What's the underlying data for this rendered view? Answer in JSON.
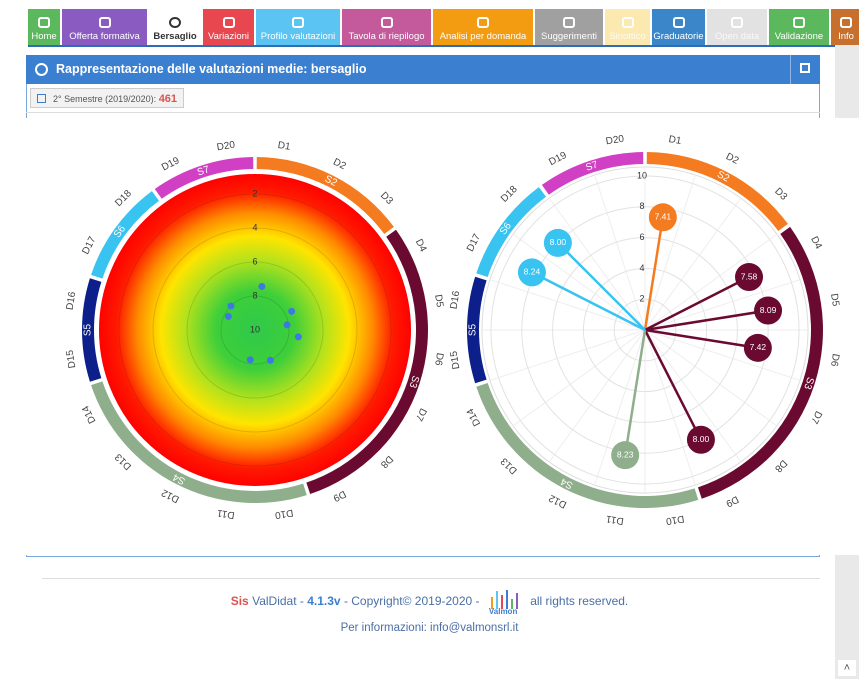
{
  "nav": [
    {
      "label": "Home",
      "color": "#5cb85c"
    },
    {
      "label": "Offerta formativa",
      "color": "#8a5cc2"
    },
    {
      "label": "Bersaglio",
      "color": "#ffffff"
    },
    {
      "label": "Variazioni",
      "color": "#e8474f"
    },
    {
      "label": "Profilo valutazioni",
      "color": "#5bc4f2"
    },
    {
      "label": "Tavola di riepilogo",
      "color": "#c45a9c"
    },
    {
      "label": "Analisi per domanda",
      "color": "#f39c12"
    },
    {
      "label": "Suggerimenti",
      "color": "#a0a0a0"
    },
    {
      "label": "Sinottico",
      "color": "#fbe9b0"
    },
    {
      "label": "Graduatorie",
      "color": "#3a86c8"
    },
    {
      "label": "Open data",
      "color": "#e2e2e2"
    },
    {
      "label": "Validazione",
      "color": "#5cb85c"
    },
    {
      "label": "Info",
      "color": "#c7702e"
    }
  ],
  "panel": {
    "title": "Rappresentazione delle valutazioni medie: bersaglio",
    "filter_label": "2° Semestre (2019/2020):",
    "filter_count": "461"
  },
  "chart_data": [
    {
      "type": "target",
      "domains": [
        "D1",
        "D2",
        "D3",
        "D4",
        "D5",
        "D6",
        "D7",
        "D8",
        "D9",
        "D10",
        "D11",
        "D12",
        "D13",
        "D14",
        "D15",
        "D16",
        "D17",
        "D18",
        "D19",
        "D20"
      ],
      "values": [
        7.41,
        null,
        null,
        7.58,
        8.09,
        7.42,
        null,
        null,
        8.0,
        null,
        8.23,
        null,
        null,
        null,
        null,
        null,
        8.24,
        8.0,
        null,
        null
      ],
      "sectors": [
        {
          "name": "S2",
          "color": "#f47b20",
          "from": "D1",
          "to": "D3"
        },
        {
          "name": "S3",
          "color": "#6b0a30",
          "from": "D4",
          "to": "D9"
        },
        {
          "name": "S4",
          "color": "#8fae8c",
          "from": "D10",
          "to": "D14"
        },
        {
          "name": "S5",
          "color": "#0d1f8a",
          "from": "D15",
          "to": "D16"
        },
        {
          "name": "S6",
          "color": "#38c3f0",
          "from": "D17",
          "to": "D18"
        },
        {
          "name": "S7",
          "color": "#d13fc4",
          "from": "D19",
          "to": "D20"
        }
      ],
      "rlim": [
        10,
        0
      ],
      "rticks": [
        2,
        4,
        6,
        8,
        10
      ],
      "color": "#3d79e0"
    },
    {
      "type": "radar",
      "domains": [
        "D1",
        "D2",
        "D3",
        "D4",
        "D5",
        "D6",
        "D7",
        "D8",
        "D9",
        "D10",
        "D11",
        "D12",
        "D13",
        "D14",
        "D15",
        "D16",
        "D17",
        "D18",
        "D19",
        "D20"
      ],
      "values": [
        7.41,
        null,
        null,
        7.58,
        8.09,
        7.42,
        null,
        null,
        8.0,
        null,
        8.23,
        null,
        null,
        null,
        null,
        null,
        8.24,
        8.0,
        null,
        null
      ],
      "value_labels": [
        "7.41",
        null,
        null,
        "7.58",
        "8.09",
        "7.42",
        null,
        null,
        "8.00",
        null,
        "8.23",
        null,
        null,
        null,
        null,
        null,
        "8.24",
        "8.00",
        null,
        null
      ],
      "sectors": [
        {
          "name": "S2",
          "color": "#f47b20",
          "from": "D1",
          "to": "D3"
        },
        {
          "name": "S3",
          "color": "#6b0a30",
          "from": "D4",
          "to": "D9"
        },
        {
          "name": "S4",
          "color": "#8fae8c",
          "from": "D10",
          "to": "D14"
        },
        {
          "name": "S5",
          "color": "#0d1f8a",
          "from": "D15",
          "to": "D16"
        },
        {
          "name": "S6",
          "color": "#38c3f0",
          "from": "D17",
          "to": "D18"
        },
        {
          "name": "S7",
          "color": "#d13fc4",
          "from": "D19",
          "to": "D20"
        }
      ],
      "rlim": [
        0,
        10
      ],
      "rticks": [
        2,
        4,
        6,
        8,
        10
      ]
    }
  ],
  "footer": {
    "brand": "Sis",
    "app": "ValDidat -",
    "version": "4.1.3v",
    "copyright": "- Copyright© 2019-2020 -",
    "logo": "Valmon",
    "rights": "all rights reserved.",
    "info": "Per informazioni: info@valmonsrl.it"
  }
}
